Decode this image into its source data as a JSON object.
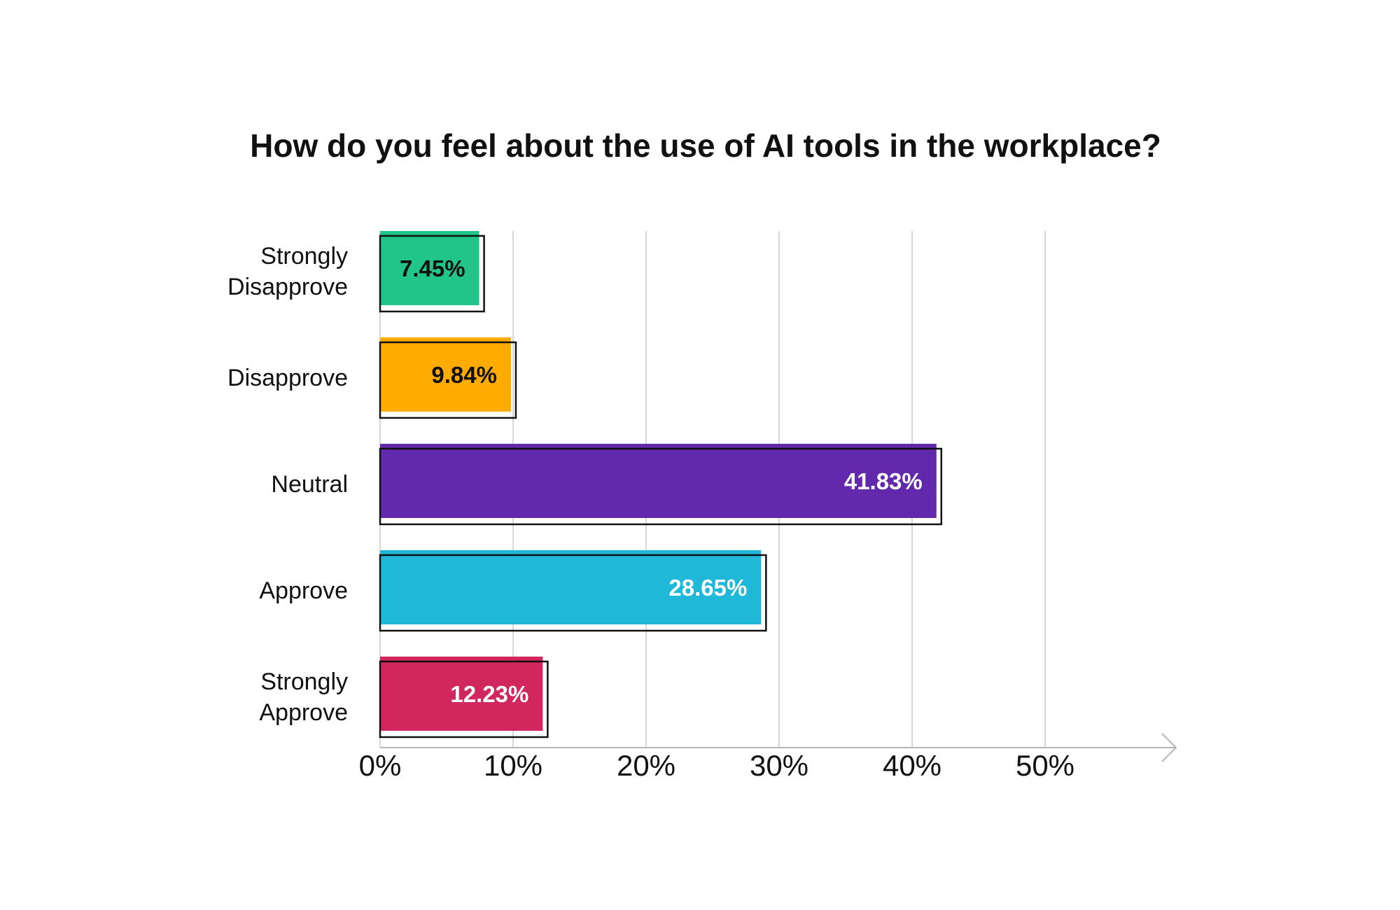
{
  "chart_data": {
    "type": "bar",
    "orientation": "horizontal",
    "title": "How do you feel about the use of AI tools in the workplace?",
    "xlabel": "",
    "ylabel": "",
    "xlim": [
      0,
      58
    ],
    "grid": "vertical",
    "legend": "none",
    "categories": [
      [
        "Strongly",
        "Disapprove"
      ],
      [
        "Disapprove"
      ],
      [
        "Neutral"
      ],
      [
        "Approve"
      ],
      [
        "Strongly",
        "Approve"
      ]
    ],
    "values": [
      7.45,
      9.84,
      41.83,
      28.65,
      12.23
    ],
    "value_labels": [
      "7.45%",
      "9.84%",
      "41.83%",
      "28.65%",
      "12.23%"
    ],
    "colors": [
      "#21c58c",
      "#ffab00",
      "#6229ad",
      "#1fb8d9",
      "#d2265f"
    ],
    "label_colors": [
      "#111111",
      "#111111",
      "#ffffff",
      "#ffffff",
      "#ffffff"
    ],
    "ticks": [
      0,
      10,
      20,
      30,
      40,
      50
    ],
    "tick_labels": [
      "0%",
      "10%",
      "20%",
      "30%",
      "40%",
      "50%"
    ]
  }
}
